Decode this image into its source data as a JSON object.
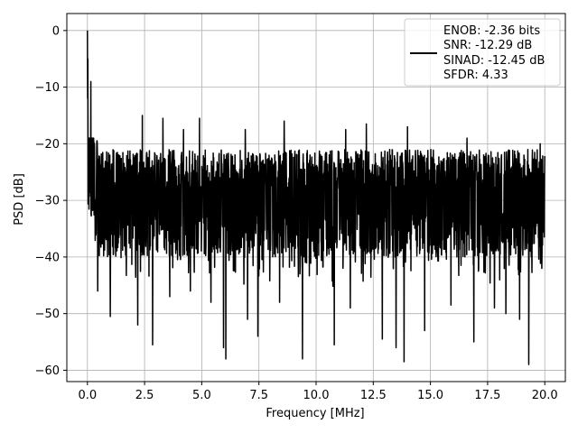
{
  "chart_data": {
    "type": "line",
    "title": "",
    "xlabel": "Frequency [MHz]",
    "ylabel": "PSD [dB]",
    "xlim": [
      -0.9,
      20.9
    ],
    "ylim": [
      -62,
      3
    ],
    "xticks": [
      0.0,
      2.5,
      5.0,
      7.5,
      10.0,
      12.5,
      15.0,
      17.5,
      20.0
    ],
    "xtick_labels": [
      "0.0",
      "2.5",
      "5.0",
      "7.5",
      "10.0",
      "12.5",
      "15.0",
      "17.5",
      "20.0"
    ],
    "yticks": [
      0,
      -10,
      -20,
      -30,
      -40,
      -50,
      -60
    ],
    "ytick_labels": [
      "0",
      "−10",
      "−20",
      "−30",
      "−40",
      "−50",
      "−60"
    ],
    "grid": true,
    "legend_position": "top-right",
    "legend_lines": [
      "ENOB: -2.36 bits",
      "SNR: -12.29 dB",
      "SINAD: -12.45 dB",
      "SFDR: 4.33"
    ],
    "line_color": "#000000",
    "series": [
      {
        "x_start": 0.0,
        "x_end": 20.0,
        "noise_floor_db": -30,
        "typical_peak_db": -20,
        "typical_trough_db": -42,
        "dc_peak_db": 0,
        "deep_dips": [
          {
            "x": 0.45,
            "y": -46
          },
          {
            "x": 1.0,
            "y": -50.5
          },
          {
            "x": 2.2,
            "y": -52
          },
          {
            "x": 2.85,
            "y": -55.5
          },
          {
            "x": 3.6,
            "y": -47
          },
          {
            "x": 4.5,
            "y": -46
          },
          {
            "x": 5.4,
            "y": -48
          },
          {
            "x": 5.95,
            "y": -56
          },
          {
            "x": 6.05,
            "y": -58
          },
          {
            "x": 7.0,
            "y": -51
          },
          {
            "x": 7.45,
            "y": -54
          },
          {
            "x": 8.4,
            "y": -48
          },
          {
            "x": 9.4,
            "y": -58
          },
          {
            "x": 10.8,
            "y": -55.5
          },
          {
            "x": 11.5,
            "y": -49
          },
          {
            "x": 12.9,
            "y": -54.5
          },
          {
            "x": 13.5,
            "y": -56
          },
          {
            "x": 13.85,
            "y": -58.5
          },
          {
            "x": 14.75,
            "y": -53
          },
          {
            "x": 15.9,
            "y": -48.5
          },
          {
            "x": 16.9,
            "y": -55
          },
          {
            "x": 17.8,
            "y": -49
          },
          {
            "x": 18.3,
            "y": -50
          },
          {
            "x": 18.9,
            "y": -51
          },
          {
            "x": 19.3,
            "y": -59
          },
          {
            "x": 19.8,
            "y": -56.5
          }
        ],
        "high_peaks": [
          {
            "x": 0.15,
            "y": -9
          },
          {
            "x": 2.4,
            "y": -15
          },
          {
            "x": 3.3,
            "y": -15.5
          },
          {
            "x": 4.2,
            "y": -17.5
          },
          {
            "x": 4.9,
            "y": -15.5
          },
          {
            "x": 6.9,
            "y": -17.5
          },
          {
            "x": 8.6,
            "y": -16
          },
          {
            "x": 11.3,
            "y": -17.5
          },
          {
            "x": 12.2,
            "y": -16.5
          },
          {
            "x": 14.0,
            "y": -17
          },
          {
            "x": 16.6,
            "y": -19
          },
          {
            "x": 19.8,
            "y": -20
          }
        ]
      }
    ]
  }
}
